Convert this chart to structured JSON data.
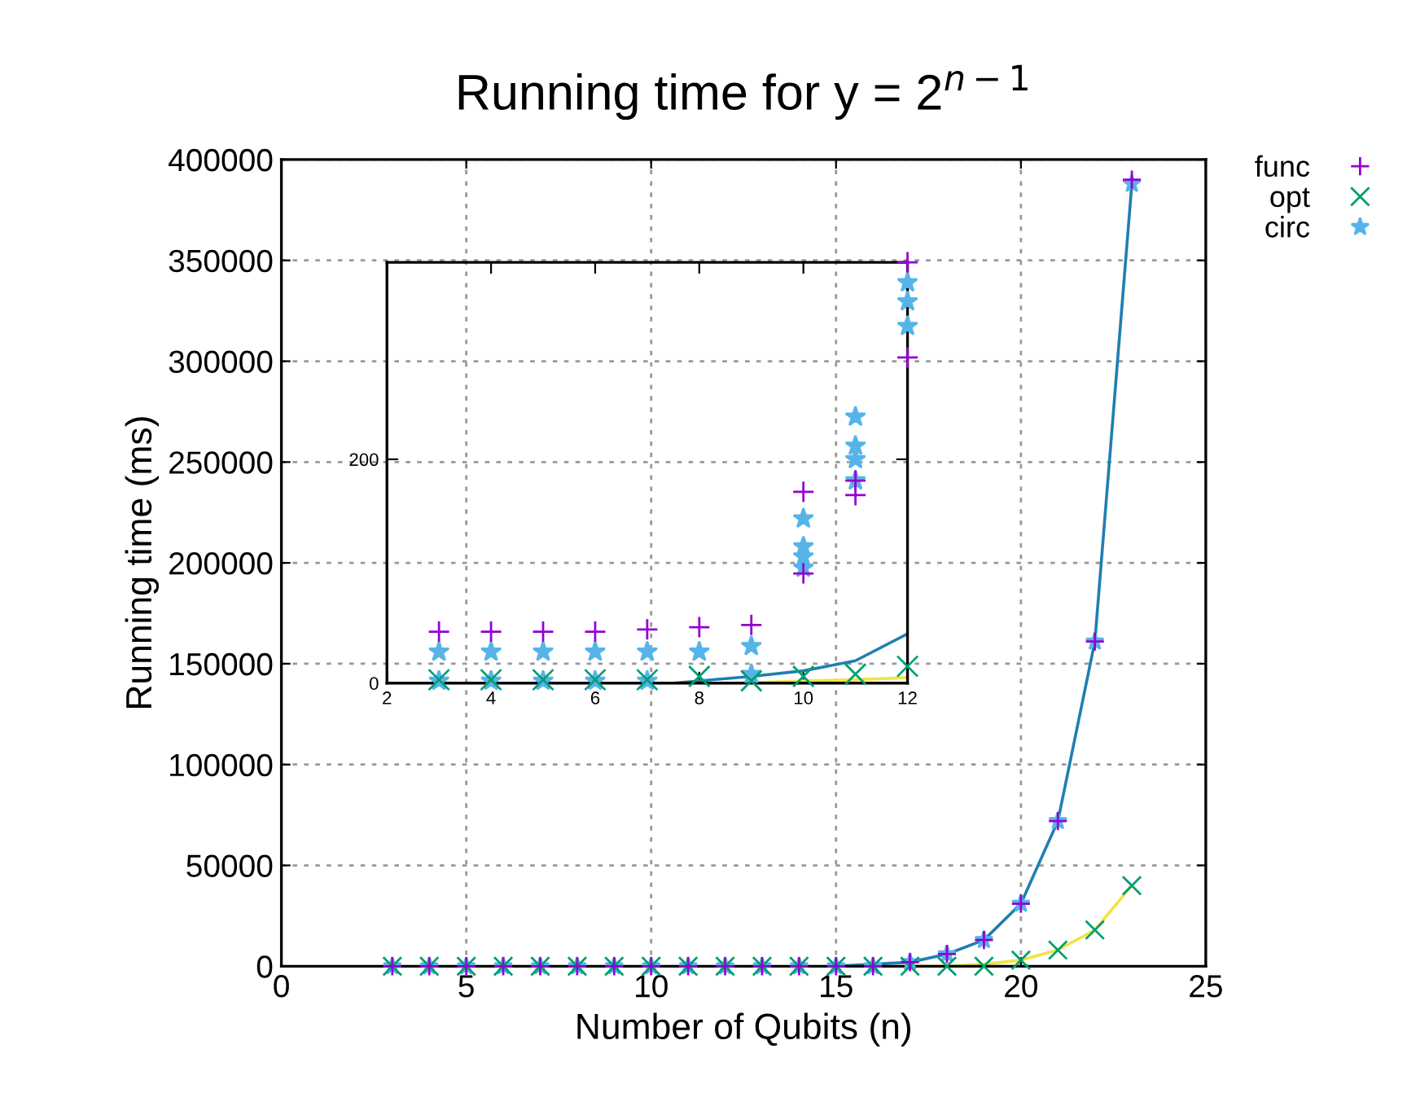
{
  "chart_data": [
    {
      "type": "scatter",
      "title": "Running time for y = 2$^{n−1}$",
      "xlabel": "Number of Qubits (n)",
      "ylabel": "Running time (ms)",
      "xlim": [
        0,
        25
      ],
      "xticks": [
        0,
        5,
        10,
        15,
        20,
        25
      ],
      "ylim": [
        0,
        400000
      ],
      "yticks": [
        0,
        50000,
        100000,
        150000,
        200000,
        250000,
        300000,
        350000,
        400000
      ],
      "grid": true,
      "legend": "top right",
      "series": [
        {
          "name": "func",
          "color": "#9400d3",
          "marker": "plus",
          "x": [
            3,
            4,
            5,
            6,
            7,
            8,
            9,
            10,
            11,
            12,
            13,
            14,
            15,
            16,
            17,
            18,
            19,
            20,
            21,
            22,
            23
          ],
          "values": [
            0,
            0,
            0,
            0,
            0,
            0,
            0,
            0,
            0,
            0,
            0,
            0,
            0,
            0,
            2000,
            6000,
            13000,
            31000,
            72000,
            161000,
            390000
          ]
        },
        {
          "name": "opt",
          "color": "#009e73",
          "marker": "cross",
          "x": [
            3,
            4,
            5,
            6,
            7,
            8,
            9,
            10,
            11,
            12,
            13,
            14,
            15,
            16,
            17,
            18,
            19,
            20,
            21,
            22,
            23
          ],
          "values": [
            0,
            0,
            0,
            0,
            0,
            0,
            0,
            0,
            0,
            0,
            0,
            0,
            0,
            0,
            0,
            0,
            0,
            3000,
            8000,
            18000,
            40000
          ]
        },
        {
          "name": "circ",
          "color": "#56b4e9",
          "marker": "star",
          "x": [
            3,
            4,
            5,
            6,
            7,
            8,
            9,
            10,
            11,
            12,
            13,
            14,
            15,
            16,
            17,
            18,
            19,
            20,
            21,
            22,
            23
          ],
          "values": [
            0,
            0,
            0,
            0,
            0,
            0,
            0,
            0,
            0,
            0,
            0,
            0,
            0,
            0,
            2000,
            6000,
            13000,
            31000,
            72000,
            161000,
            388000
          ]
        },
        {
          "type": "line",
          "color": "#1f7fb0",
          "marker": "none",
          "x": [
            15,
            16,
            17,
            18,
            19,
            20,
            21,
            22,
            23
          ],
          "values": [
            0,
            1000,
            2000,
            6000,
            13000,
            31000,
            72000,
            161000,
            388000
          ]
        },
        {
          "type": "line",
          "color": "#f0e442",
          "marker": "none",
          "x": [
            17,
            18,
            19,
            20,
            21,
            22,
            23
          ],
          "values": [
            0,
            0,
            1000,
            3000,
            8000,
            18000,
            40000
          ]
        }
      ]
    },
    {
      "type": "scatter",
      "xlim": [
        2,
        12
      ],
      "xticks": [
        2,
        4,
        6,
        8,
        10,
        12
      ],
      "ylim": [
        0,
        376
      ],
      "yticks": [
        0,
        200
      ],
      "grid": false,
      "legend": false,
      "series": [
        {
          "color": "#9400d3",
          "marker": "plus",
          "x": [
            3,
            4,
            5,
            6,
            7,
            8,
            9,
            10,
            10,
            11,
            11,
            12,
            12
          ],
          "values": [
            46,
            46,
            46,
            46,
            48,
            50,
            52,
            171,
            98,
            181,
            168,
            376,
            291
          ]
        },
        {
          "color": "#009e73",
          "marker": "cross",
          "x": [
            3,
            4,
            5,
            6,
            7,
            8,
            9,
            10,
            11,
            12
          ],
          "values": [
            3,
            3,
            3,
            3,
            3,
            6,
            2,
            6,
            8,
            15
          ]
        },
        {
          "color": "#56b4e9",
          "marker": "star",
          "x": [
            3,
            4,
            5,
            6,
            7,
            8,
            3,
            4,
            5,
            6,
            7,
            9,
            9,
            10,
            10,
            10,
            10,
            11,
            11,
            11,
            11,
            12,
            12,
            12
          ],
          "values": [
            28,
            28,
            28,
            28,
            28,
            28,
            2,
            2,
            2,
            2,
            2,
            33,
            8,
            147,
            122,
            113,
            103,
            238,
            212,
            200,
            181,
            358,
            341,
            319
          ]
        },
        {
          "type": "line",
          "color": "#1f7fb0",
          "marker": "none",
          "x": [
            7.5,
            8,
            9,
            10,
            11,
            12
          ],
          "values": [
            0,
            2,
            6,
            11,
            20,
            44
          ]
        },
        {
          "type": "line",
          "color": "#f0e442",
          "marker": "none",
          "x": [
            8.7,
            10,
            11,
            12
          ],
          "values": [
            0,
            2,
            3,
            5
          ]
        }
      ]
    }
  ]
}
